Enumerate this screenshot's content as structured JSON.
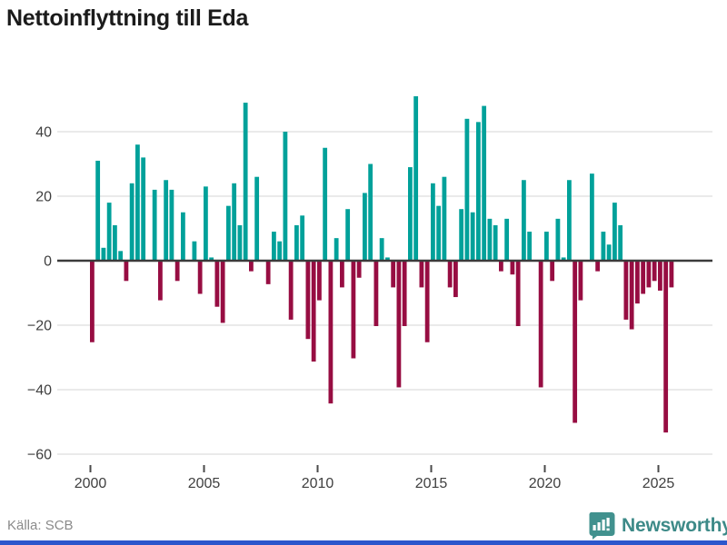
{
  "title": "Nettoinflyttning till Eda",
  "source": "Källa: SCB",
  "logo": {
    "text": "Newsworthy",
    "icon": "bar-chart-speech-bubble-icon"
  },
  "colors": {
    "positive": "#00a19a",
    "negative": "#970d42",
    "grid": "#e4e4e4",
    "zero_axis": "#3b3b3b",
    "tick": "#4a4a4a",
    "axis_label": "#3f3f3f",
    "title": "#1b1b1b",
    "source": "#8a8a8a",
    "logo_bubble": "#41918e",
    "logo_text": "#3d8a88",
    "bottom_bar": "#2c56cc",
    "background": "#ffffff"
  },
  "chart_data": {
    "type": "bar",
    "title": "Nettoinflyttning till Eda",
    "xlabel": "",
    "ylabel": "",
    "frequency": "quarterly",
    "start_year": 2000,
    "start_quarter": 1,
    "end_year": 2025,
    "end_quarter": 3,
    "x_tick_labels": [
      "2000",
      "2005",
      "2010",
      "2015",
      "2020",
      "2025"
    ],
    "x_tick_years": [
      2000,
      2005,
      2010,
      2015,
      2020,
      2025
    ],
    "y_ticks": [
      40,
      20,
      0,
      -20,
      -40,
      -60
    ],
    "ylim": [
      -60,
      55
    ],
    "grid": "horizontal",
    "legend": "none",
    "values": [
      -25,
      31,
      4,
      18,
      11,
      3,
      -6,
      24,
      36,
      32,
      0,
      22,
      -12,
      25,
      22,
      -6,
      15,
      0,
      6,
      -10,
      23,
      1,
      -14,
      -19,
      17,
      24,
      11,
      49,
      -3,
      26,
      0,
      -7,
      9,
      6,
      40,
      -18,
      11,
      14,
      -24,
      -31,
      -12,
      35,
      -44,
      7,
      -8,
      16,
      -30,
      -5,
      21,
      30,
      -20,
      7,
      1,
      -8,
      -39,
      -20,
      29,
      51,
      -8,
      -25,
      24,
      17,
      26,
      -8,
      -11,
      16,
      44,
      15,
      43,
      48,
      13,
      11,
      -3,
      13,
      -4,
      -20,
      25,
      9,
      0,
      -39,
      9,
      -6,
      13,
      1,
      25,
      -50,
      -12,
      0,
      27,
      -3,
      9,
      5,
      18,
      11,
      -18,
      -21,
      -13,
      -10,
      -8,
      -6,
      -9,
      -53,
      -8
    ]
  }
}
